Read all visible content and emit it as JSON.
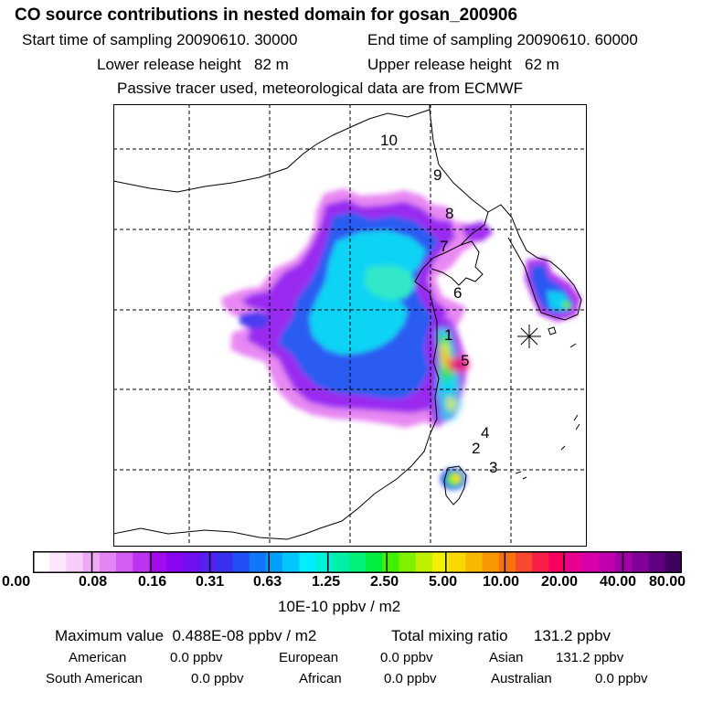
{
  "chart_data": {
    "type": "heatmap",
    "title": "CO  source contributions in nested domain for gosan_200906",
    "start_label": "Start time of sampling",
    "start_value": "20090610. 30000",
    "end_label": "End time of sampling",
    "end_value": "20090610. 60000",
    "lower_label": "Lower release height",
    "lower_value": "82 m",
    "upper_label": "Upper release height",
    "upper_value": "62 m",
    "note": "Passive tracer used, meteorological data are from ECMWF",
    "region_labels": [
      "10",
      "9",
      "8",
      "7",
      "6",
      "1",
      "5",
      "4",
      "2",
      "3"
    ],
    "colorbar": {
      "ticks": [
        "0.00",
        "0.08",
        "0.16",
        "0.31",
        "0.63",
        "1.25",
        "2.50",
        "5.00",
        "10.00",
        "20.00",
        "40.00",
        "80.00"
      ],
      "units": "10E-10 ppbv / m2",
      "colors": [
        "#ffffff",
        "#fbe6fb",
        "#f6ccf8",
        "#eeaaf6",
        "#e485f4",
        "#d35cf2",
        "#bd33f0",
        "#a30bef",
        "#8a06f0",
        "#7010f0",
        "#5520f0",
        "#3a30f0",
        "#2050f5",
        "#1078f8",
        "#00a0fb",
        "#00c6fd",
        "#00eefe",
        "#00f0d8",
        "#00f0a8",
        "#00f078",
        "#00ee40",
        "#40f000",
        "#80f000",
        "#bef000",
        "#f0f000",
        "#f8d800",
        "#f8b800",
        "#f89800",
        "#f87010",
        "#f84830",
        "#f82048",
        "#f80060",
        "#e80090",
        "#d800a8",
        "#c000b0",
        "#a000a8",
        "#800098",
        "#600080",
        "#400060"
      ]
    },
    "summary": {
      "max_label": "Maximum value",
      "max_value": "0.488E-08 ppbv / m2",
      "total_label": "Total mixing ratio",
      "total_value": "131.2 ppbv",
      "american_label": "American",
      "american_value": "0.0 ppbv",
      "european_label": "European",
      "european_value": "0.0 ppbv",
      "asian_label": "Asian",
      "asian_value": "131.2 ppbv",
      "samerican_label": "South American",
      "samerican_value": "0.0 ppbv",
      "african_label": "African",
      "african_value": "0.0 ppbv",
      "australian_label": "Australian",
      "australian_value": "0.0 ppbv"
    }
  }
}
